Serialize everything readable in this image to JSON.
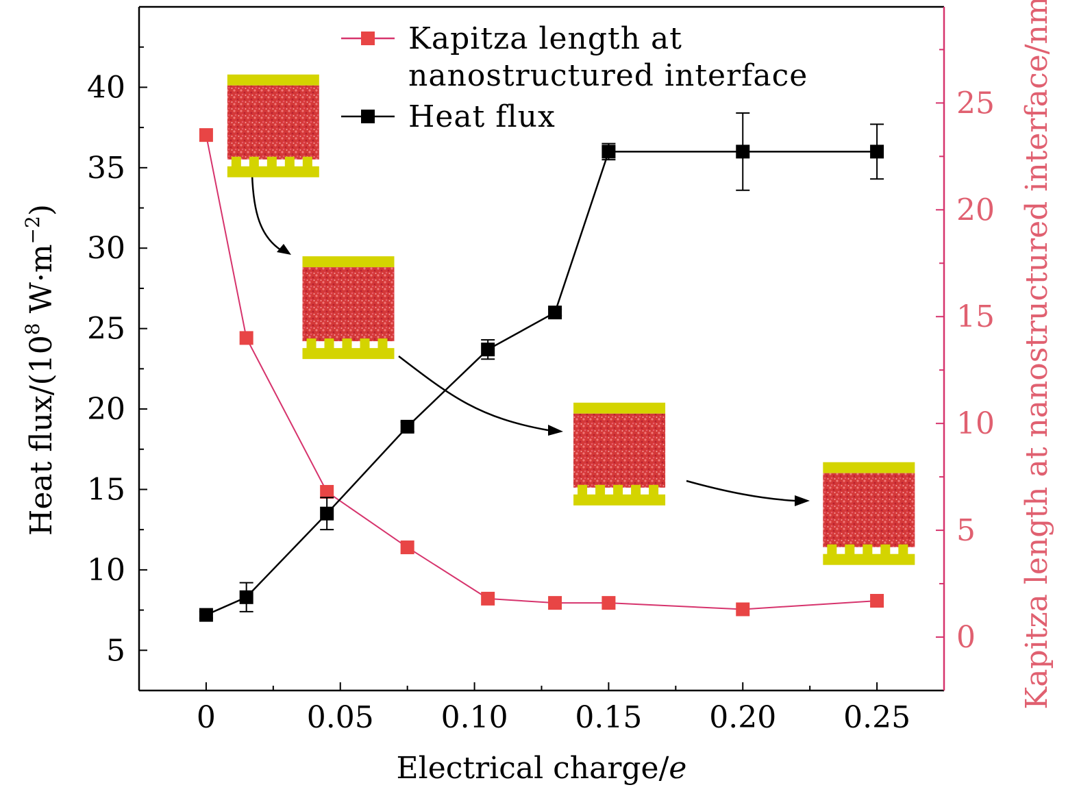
{
  "chart_data": {
    "type": "line",
    "xlabel": "Electrical charge/e",
    "ylabel_left": "Heat flux/(10",
    "ylabel_left_exp": "8",
    "ylabel_left_unit": " W·m",
    "ylabel_left_unit_exp": "−2",
    "ylabel_left_close": ")",
    "ylabel_right": "Kapitza length at nanostructured interface/nm",
    "x_ticks": [
      {
        "value": 0,
        "label": "0"
      },
      {
        "value": 0.05,
        "label": "0.05"
      },
      {
        "value": 0.1,
        "label": "0.10"
      },
      {
        "value": 0.15,
        "label": "0.15"
      },
      {
        "value": 0.2,
        "label": "0.20"
      },
      {
        "value": 0.25,
        "label": "0.25"
      }
    ],
    "y_left_ticks": [
      {
        "value": 5,
        "label": "5"
      },
      {
        "value": 10,
        "label": "10"
      },
      {
        "value": 15,
        "label": "15"
      },
      {
        "value": 20,
        "label": "20"
      },
      {
        "value": 25,
        "label": "25"
      },
      {
        "value": 30,
        "label": "30"
      },
      {
        "value": 35,
        "label": "35"
      },
      {
        "value": 40,
        "label": "40"
      }
    ],
    "y_right_ticks": [
      {
        "value": 0,
        "label": "0"
      },
      {
        "value": 5,
        "label": "5"
      },
      {
        "value": 10,
        "label": "10"
      },
      {
        "value": 15,
        "label": "15"
      },
      {
        "value": 20,
        "label": "20"
      },
      {
        "value": 25,
        "label": "25"
      }
    ],
    "xlim": [
      -0.025,
      0.275
    ],
    "ylim_left": [
      2.5,
      45
    ],
    "ylim_right": [
      -2.5,
      29.5
    ],
    "legend_position": "top-center",
    "series": [
      {
        "name": "Kapitza length at nanostructured interface",
        "legend_lines": [
          "Kapitza length at",
          "nanostructured interface"
        ],
        "axis": "right",
        "color": "#e84545",
        "line_color": "#d6336c",
        "x": [
          0,
          0.015,
          0.045,
          0.075,
          0.105,
          0.13,
          0.15,
          0.2,
          0.25
        ],
        "y": [
          23.5,
          14.0,
          6.8,
          4.2,
          1.8,
          1.6,
          1.6,
          1.3,
          1.7
        ]
      },
      {
        "name": "Heat flux",
        "legend_lines": [
          "Heat flux"
        ],
        "axis": "left",
        "color": "#000000",
        "line_color": "#000000",
        "x": [
          0,
          0.015,
          0.045,
          0.075,
          0.105,
          0.13,
          0.15,
          0.2,
          0.25
        ],
        "y": [
          7.2,
          8.3,
          13.5,
          18.9,
          23.7,
          26.0,
          36.0,
          36.0,
          36.0
        ],
        "error": [
          0.2,
          0.9,
          1.0,
          0.3,
          0.6,
          0.2,
          0.5,
          2.4,
          1.7
        ]
      }
    ],
    "insets": [
      {
        "name": "interface-snapshot-1",
        "x": 0.025,
        "left_y": 37.6
      },
      {
        "name": "interface-snapshot-2",
        "x": 0.053,
        "left_y": 26.3
      },
      {
        "name": "interface-snapshot-3",
        "x": 0.154,
        "left_y": 17.2
      },
      {
        "name": "interface-snapshot-4",
        "x": 0.247,
        "left_y": 13.5
      }
    ]
  },
  "colors": {
    "right_axis": "#d6336c",
    "right_axis_text": "#e06070",
    "gold": "#d4d400",
    "liquid": "#d43838"
  }
}
